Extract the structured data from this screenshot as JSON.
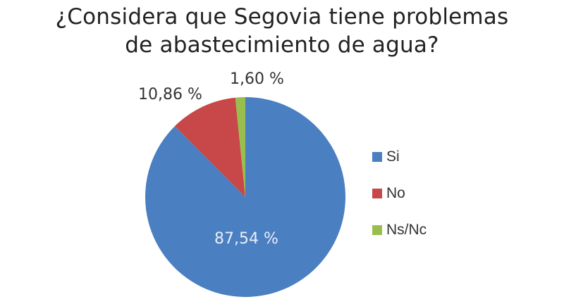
{
  "title": {
    "line1": "¿Considera que Segovia tiene problemas",
    "line2": "de abastecimiento de agua?"
  },
  "chart_data": {
    "type": "pie",
    "title": "¿Considera que Segovia tiene problemas de abastecimiento de agua?",
    "categories": [
      "Si",
      "No",
      "Ns/Nc"
    ],
    "values": [
      87.54,
      10.86,
      1.6
    ],
    "labels": [
      "87,54 %",
      "10,86 %",
      "1,60 %"
    ],
    "colors": [
      "#4a7fc1",
      "#c8484a",
      "#98bf4e"
    ],
    "legend_position": "right",
    "start_angle": "12 o'clock, clockwise"
  },
  "legend": [
    {
      "label": "Si",
      "color": "#4a7fc1"
    },
    {
      "label": "No",
      "color": "#c8484a"
    },
    {
      "label": "Ns/Nc",
      "color": "#98bf4e"
    }
  ]
}
